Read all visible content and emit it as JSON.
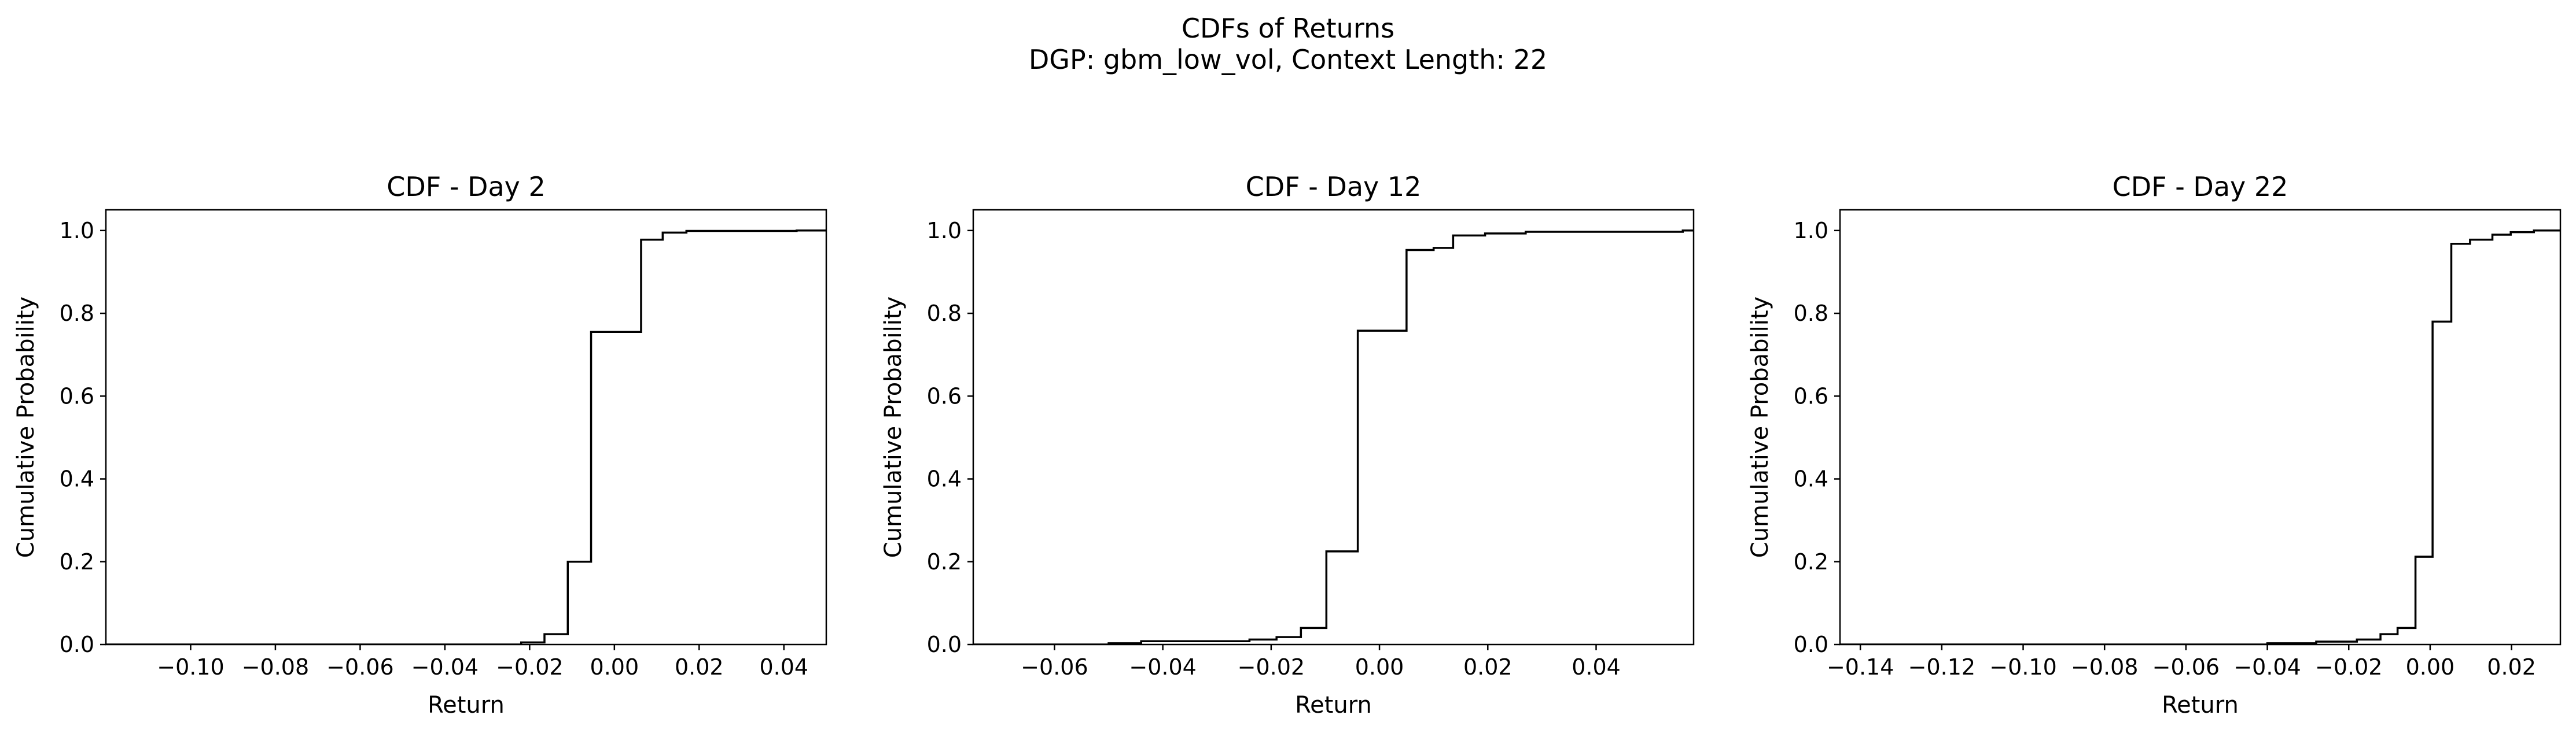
{
  "figure": {
    "suptitle_line1": "CDFs of Returns",
    "suptitle_line2": "DGP: gbm_low_vol, Context Length: 22"
  },
  "colors": {
    "line": "#000000",
    "background": "#ffffff",
    "axes": "#000000"
  },
  "chart_data": [
    {
      "type": "line",
      "subtype": "step-cdf",
      "title": "CDF - Day 2",
      "xlabel": "Return",
      "ylabel": "Cumulative Probability",
      "xlim": [
        -0.12,
        0.05
      ],
      "ylim": [
        0,
        1.05
      ],
      "xticks": [
        -0.1,
        -0.08,
        -0.06,
        -0.04,
        -0.02,
        0.0,
        0.02,
        0.04
      ],
      "xtick_labels": [
        "−0.10",
        "−0.08",
        "−0.06",
        "−0.04",
        "−0.02",
        "0.00",
        "0.02",
        "0.04"
      ],
      "yticks": [
        0.0,
        0.2,
        0.4,
        0.6,
        0.8,
        1.0
      ],
      "ytick_labels": [
        "0.0",
        "0.2",
        "0.4",
        "0.6",
        "0.8",
        "1.0"
      ],
      "grid": false,
      "series": [
        {
          "x": [
            -0.12,
            -0.022,
            -0.0165,
            -0.011,
            -0.0055,
            0.0063,
            0.0114,
            0.017,
            0.043,
            0.05
          ],
          "y": [
            0.0,
            0.005,
            0.025,
            0.2,
            0.755,
            0.978,
            0.995,
            0.999,
            1.0,
            1.0
          ]
        }
      ]
    },
    {
      "type": "line",
      "subtype": "step-cdf",
      "title": "CDF - Day 12",
      "xlabel": "Return",
      "ylabel": "Cumulative Probability",
      "xlim": [
        -0.075,
        0.058
      ],
      "ylim": [
        0,
        1.05
      ],
      "xticks": [
        -0.06,
        -0.04,
        -0.02,
        0.0,
        0.02,
        0.04
      ],
      "xtick_labels": [
        "−0.06",
        "−0.04",
        "−0.02",
        "0.00",
        "0.02",
        "0.04"
      ],
      "yticks": [
        0.0,
        0.2,
        0.4,
        0.6,
        0.8,
        1.0
      ],
      "ytick_labels": [
        "0.0",
        "0.2",
        "0.4",
        "0.6",
        "0.8",
        "1.0"
      ],
      "grid": false,
      "series": [
        {
          "x": [
            -0.075,
            -0.05,
            -0.044,
            -0.024,
            -0.019,
            -0.0145,
            -0.0098,
            -0.004,
            0.005,
            0.01,
            0.0136,
            0.0195,
            0.027,
            0.056,
            0.058
          ],
          "y": [
            0.0,
            0.003,
            0.008,
            0.012,
            0.018,
            0.04,
            0.225,
            0.758,
            0.953,
            0.958,
            0.988,
            0.993,
            0.997,
            1.0,
            1.0
          ]
        }
      ]
    },
    {
      "type": "line",
      "subtype": "step-cdf",
      "title": "CDF - Day 22",
      "xlabel": "Return",
      "ylabel": "Cumulative Probability",
      "xlim": [
        -0.145,
        0.032
      ],
      "ylim": [
        0,
        1.05
      ],
      "xticks": [
        -0.14,
        -0.12,
        -0.1,
        -0.08,
        -0.06,
        -0.04,
        -0.02,
        0.0,
        0.02
      ],
      "xtick_labels": [
        "−0.14",
        "−0.12",
        "−0.10",
        "−0.08",
        "−0.06",
        "−0.04",
        "−0.02",
        "0.00",
        "0.02"
      ],
      "yticks": [
        0.0,
        0.2,
        0.4,
        0.6,
        0.8,
        1.0
      ],
      "ytick_labels": [
        "0.0",
        "0.2",
        "0.4",
        "0.6",
        "0.8",
        "1.0"
      ],
      "grid": false,
      "series": [
        {
          "x": [
            -0.145,
            -0.04,
            -0.028,
            -0.018,
            -0.0122,
            -0.008,
            -0.0036,
            0.0006,
            0.0052,
            0.0098,
            0.0153,
            0.0198,
            0.0255,
            0.032
          ],
          "y": [
            0.0,
            0.003,
            0.007,
            0.012,
            0.025,
            0.04,
            0.212,
            0.78,
            0.968,
            0.978,
            0.99,
            0.996,
            1.0,
            1.0
          ]
        }
      ]
    }
  ]
}
